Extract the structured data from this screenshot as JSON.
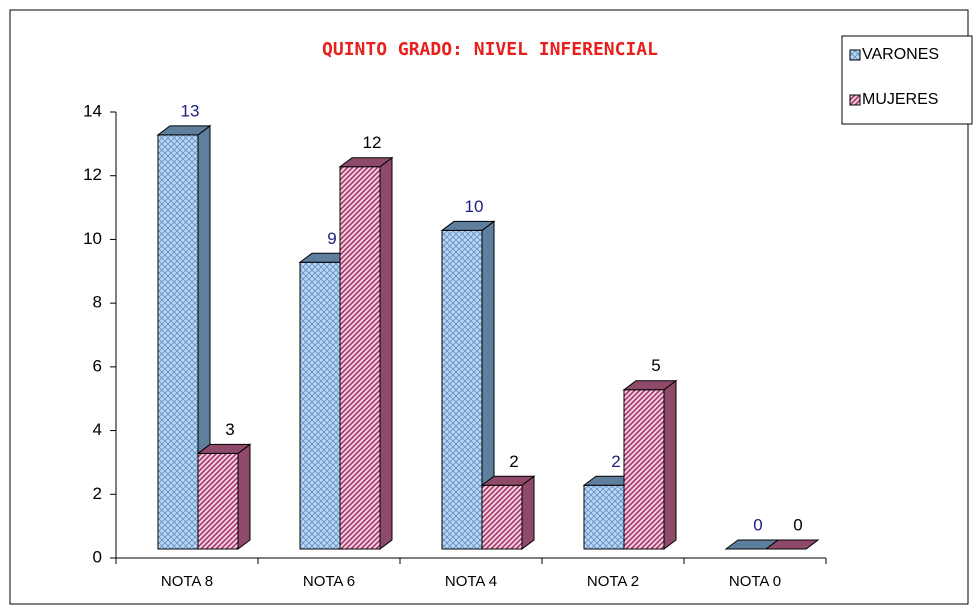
{
  "chart_data": {
    "type": "bar3d",
    "title": "QUINTO GRADO: NIVEL INFERENCIAL",
    "categories": [
      "NOTA 8",
      "NOTA 6",
      "NOTA 4",
      "NOTA 2",
      "NOTA 0"
    ],
    "series": [
      {
        "name": "VARONES",
        "color": "#bcd6f0",
        "label_color": "#1c1c80",
        "values": [
          13,
          9,
          10,
          2,
          0
        ]
      },
      {
        "name": "MUJERES",
        "color": "#c9729a",
        "label_color": "#000000",
        "values": [
          3,
          12,
          2,
          5,
          0
        ]
      }
    ],
    "ylim": [
      0,
      14
    ],
    "yticks": [
      0,
      2,
      4,
      6,
      8,
      10,
      12,
      14
    ],
    "legend": "top-right"
  }
}
